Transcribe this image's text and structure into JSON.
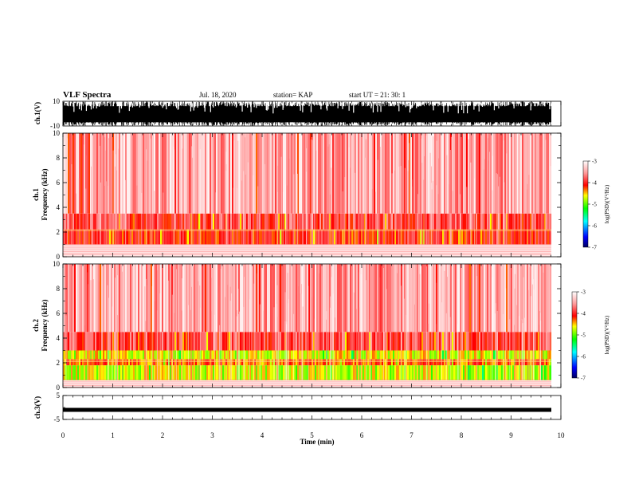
{
  "header": {
    "title": "VLF Spectra",
    "date": "Jul. 18, 2020",
    "station": "station= KAP",
    "start": "start  UT =   21: 30: 1"
  },
  "colorbar": {
    "label": "log(PSD)(V²/Hz)",
    "ticks": [
      "-3",
      "-4",
      "-5",
      "-6",
      "-7"
    ],
    "range": [
      -7,
      -3
    ],
    "colors": [
      "#000080",
      "#0000ff",
      "#00ff00",
      "#ffff00",
      "#ff0000",
      "#ffc8c8",
      "#ffffff"
    ]
  },
  "chart_data": [
    {
      "type": "line",
      "panel": "ch1-waveform",
      "ylabel": "ch.1(V)",
      "ylim": [
        -10,
        10
      ],
      "yticks": [
        "10",
        "-10"
      ],
      "xlim": [
        0,
        10
      ],
      "description_values": {
        "amplitude_typical": 10
      }
    },
    {
      "type": "heatmap",
      "panel": "ch1-spectrogram",
      "ylabel": "ch.1 Frequency (kHz)",
      "ylim": [
        0,
        10
      ],
      "yticks": [
        "0",
        "2",
        "4",
        "6",
        "8",
        "10"
      ],
      "xlim": [
        0,
        10
      ],
      "bands": [
        {
          "f_from": 1.0,
          "f_to": 2.2,
          "log_psd": -4.0
        },
        {
          "f_from": 2.2,
          "f_to": 3.5,
          "log_psd": -3.8
        },
        {
          "f_from": 3.5,
          "f_to": 10.0,
          "log_psd": -3.4
        }
      ]
    },
    {
      "type": "heatmap",
      "panel": "ch2-spectrogram",
      "ylabel": "ch.2 Frequency (kHz)",
      "ylim": [
        0,
        10
      ],
      "yticks": [
        "0",
        "2",
        "4",
        "6",
        "8",
        "10"
      ],
      "xlim": [
        0,
        10
      ],
      "bands": [
        {
          "f_from": 0.6,
          "f_to": 1.8,
          "log_psd": -4.7
        },
        {
          "f_from": 1.8,
          "f_to": 2.3,
          "log_psd": -4.2
        },
        {
          "f_from": 2.3,
          "f_to": 3.0,
          "log_psd": -4.6
        },
        {
          "f_from": 3.0,
          "f_to": 4.5,
          "log_psd": -3.8
        },
        {
          "f_from": 4.5,
          "f_to": 10.0,
          "log_psd": -3.4
        }
      ]
    },
    {
      "type": "line",
      "panel": "ch3-waveform",
      "ylabel": "ch.3(V)",
      "ylim": [
        -5,
        5
      ],
      "yticks": [
        "5",
        "-5"
      ],
      "xlim": [
        0,
        10
      ],
      "xlabel": "Time  (min)",
      "xticks": [
        "0",
        "1",
        "2",
        "3",
        "4",
        "5",
        "6",
        "7",
        "8",
        "9",
        "10"
      ],
      "level": -1
    }
  ],
  "labels": {
    "ch1_v": "ch.1(V)",
    "ch1_f_top": "ch.1",
    "ch1_f": "Frequency (kHz)",
    "ch2_f_top": "ch.2",
    "ch2_f": "Frequency (kHz)",
    "ch3_v": "ch.3(V)",
    "xlabel": "Time  (min)"
  }
}
